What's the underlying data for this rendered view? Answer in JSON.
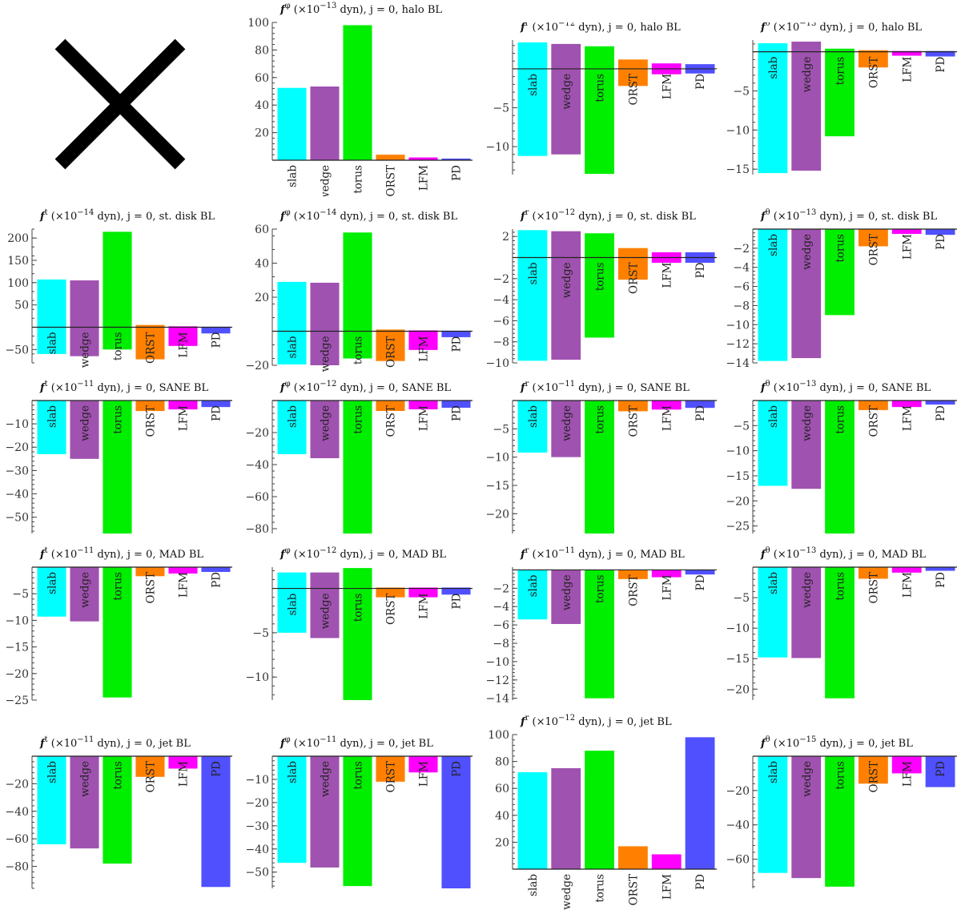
{
  "categories": [
    "slab",
    "wedge",
    "torus",
    "ORST",
    "LFM",
    "PD"
  ],
  "colors": [
    "#00ffff",
    "#a052b0",
    "#00ee00",
    "#ff8000",
    "#ff00ff",
    "#5050ff"
  ],
  "placeholder_icon": "cross-mark-icon",
  "chart_data": [
    {
      "id": "c1",
      "type": "bar",
      "title": "f^φ (×10^−13 dyn), j = 0, halo BL",
      "categories": [
        "slab",
        "wedge",
        "torus",
        "ORST",
        "LFM",
        "PD"
      ],
      "values": [
        52.5,
        53.5,
        98,
        4,
        2,
        1.2
      ],
      "ylim": [
        0,
        100
      ],
      "yticks": [
        20,
        40,
        60,
        80,
        100
      ],
      "labels_inside": false
    },
    {
      "id": "c2",
      "type": "bar",
      "title": "f^r (×10^−12 dyn), j = 0, halo BL",
      "categories": [
        "slab",
        "wedge",
        "torus",
        "ORST",
        "LFM",
        "PD"
      ],
      "values": [
        -11.2,
        -11.0,
        -13.5,
        -2.2,
        -0.7,
        -0.6
      ],
      "values_pos": [
        3.4,
        3.2,
        2.9,
        1.2,
        0.7,
        0.6
      ],
      "ylim": [
        -13.6,
        3.7
      ],
      "yticks": [
        -10,
        -5
      ],
      "labels_inside": true
    },
    {
      "id": "c3",
      "type": "bar",
      "title": "f^θ (×10^−13 dyn), j = 0, halo BL",
      "categories": [
        "slab",
        "wedge",
        "torus",
        "ORST",
        "LFM",
        "PD"
      ],
      "values": [
        -15.5,
        -15.2,
        -10.8,
        -2.0,
        -0.5,
        -0.6
      ],
      "values_pos": [
        1.1,
        1.3,
        0.4,
        0.2,
        0.1,
        0.1
      ],
      "ylim": [
        -15.7,
        1.5
      ],
      "yticks": [
        -15,
        -10,
        -5
      ],
      "labels_inside": true
    },
    {
      "id": "c4",
      "type": "bar",
      "title": "f^t (×10^−14 dyn), j = 0, st. disk BL",
      "categories": [
        "slab",
        "wedge",
        "torus",
        "ORST",
        "LFM",
        "PD"
      ],
      "values": [
        -60,
        -65,
        -50,
        -72,
        -42,
        -14
      ],
      "values_pos": [
        107,
        105,
        214,
        5,
        2,
        1
      ],
      "ylim": [
        -80,
        220
      ],
      "yticks": [
        -50,
        50,
        100,
        150,
        200
      ],
      "labels_inside": true
    },
    {
      "id": "c5",
      "type": "bar",
      "title": "f^φ (×10^−14 dyn), j = 0, st. disk BL",
      "categories": [
        "slab",
        "wedge",
        "torus",
        "ORST",
        "LFM",
        "PD"
      ],
      "values": [
        -19.5,
        -20,
        -16,
        -17.5,
        -11,
        -3.5
      ],
      "values_pos": [
        29,
        28.5,
        58,
        1,
        0.5,
        0.3
      ],
      "ylim": [
        -20,
        60
      ],
      "yticks": [
        -20,
        20,
        40,
        60
      ],
      "labels_inside": true
    },
    {
      "id": "c6",
      "type": "bar",
      "title": "f^r (×10^−12 dyn), j = 0, st. disk BL",
      "categories": [
        "slab",
        "wedge",
        "torus",
        "ORST",
        "LFM",
        "PD"
      ],
      "values": [
        -9.8,
        -9.7,
        -7.6,
        -2.1,
        -0.5,
        -0.5
      ],
      "values_pos": [
        2.6,
        2.5,
        2.3,
        0.9,
        0.5,
        0.5
      ],
      "ylim": [
        -10,
        2.7
      ],
      "yticks": [
        -10,
        -8,
        -6,
        -4,
        -2,
        2
      ],
      "labels_inside": true
    },
    {
      "id": "c7",
      "type": "bar",
      "title": "f^θ (×10^−13 dyn), j = 0, st. disk BL",
      "categories": [
        "slab",
        "wedge",
        "torus",
        "ORST",
        "LFM",
        "PD"
      ],
      "values": [
        -13.8,
        -13.5,
        -9.0,
        -1.8,
        -0.5,
        -0.6
      ],
      "ylim": [
        -14,
        0
      ],
      "yticks": [
        -14,
        -12,
        -10,
        -8,
        -6,
        -4,
        -2
      ],
      "labels_inside": true
    },
    {
      "id": "c8",
      "type": "bar",
      "title": "f^t (×10^−11 dyn), j = 0, SANE BL",
      "categories": [
        "slab",
        "wedge",
        "torus",
        "ORST",
        "LFM",
        "PD"
      ],
      "values": [
        -23,
        -25,
        -57,
        -4.5,
        -3.8,
        -2.8
      ],
      "ylim": [
        -57,
        0
      ],
      "yticks": [
        -50,
        -40,
        -30,
        -20,
        -10
      ],
      "labels_inside": true
    },
    {
      "id": "c9",
      "type": "bar",
      "title": "f^φ (×10^−12 dyn), j = 0, SANE BL",
      "categories": [
        "slab",
        "wedge",
        "torus",
        "ORST",
        "LFM",
        "PD"
      ],
      "values": [
        -33.5,
        -36,
        -83,
        -6.5,
        -5.5,
        -4.5
      ],
      "ylim": [
        -83,
        0
      ],
      "yticks": [
        -80,
        -60,
        -40,
        -20
      ],
      "labels_inside": true
    },
    {
      "id": "c10",
      "type": "bar",
      "title": "f^r (×10^−11 dyn), j = 0, SANE BL",
      "categories": [
        "slab",
        "wedge",
        "torus",
        "ORST",
        "LFM",
        "PD"
      ],
      "values": [
        -9.2,
        -10.0,
        -23.5,
        -1.9,
        -1.6,
        -1.3
      ],
      "ylim": [
        -23.5,
        0
      ],
      "yticks": [
        -20,
        -15,
        -10,
        -5
      ],
      "labels_inside": true
    },
    {
      "id": "c11",
      "type": "bar",
      "title": "f^θ (×10^−13 dyn), j = 0, SANE BL",
      "categories": [
        "slab",
        "wedge",
        "torus",
        "ORST",
        "LFM",
        "PD"
      ],
      "values": [
        -17,
        -17.6,
        -26.5,
        -1.9,
        -1.3,
        -0.8
      ],
      "ylim": [
        -26.5,
        0
      ],
      "yticks": [
        -25,
        -20,
        -15,
        -10,
        -5
      ],
      "labels_inside": true
    },
    {
      "id": "c12",
      "type": "bar",
      "title": "f^t (×10^−11 dyn), j = 0, MAD BL",
      "categories": [
        "slab",
        "wedge",
        "torus",
        "ORST",
        "LFM",
        "PD"
      ],
      "values": [
        -9.3,
        -10.2,
        -24.5,
        -1.7,
        -1.2,
        -0.9
      ],
      "ylim": [
        -25,
        0
      ],
      "yticks": [
        -25,
        -20,
        -15,
        -10,
        -5
      ],
      "labels_inside": true
    },
    {
      "id": "c13",
      "type": "bar",
      "title": "f^φ (×10^−12 dyn), j = 0, MAD BL",
      "categories": [
        "slab",
        "wedge",
        "torus",
        "ORST",
        "LFM",
        "PD"
      ],
      "values": [
        -5.0,
        -5.6,
        -12.6,
        -1.0,
        -1.0,
        -0.7
      ],
      "values_pos": [
        1.8,
        1.8,
        2.3,
        0.1,
        0.1,
        0.1
      ],
      "ylim": [
        -12.6,
        2.4
      ],
      "yticks": [
        -10,
        -5
      ],
      "labels_inside": true
    },
    {
      "id": "c14",
      "type": "bar",
      "title": "f^r (×10^−11 dyn), j = 0, MAD BL",
      "categories": [
        "slab",
        "wedge",
        "torus",
        "ORST",
        "LFM",
        "PD"
      ],
      "values": [
        -5.4,
        -5.9,
        -14.0,
        -1.0,
        -0.8,
        -0.5
      ],
      "ylim": [
        -14.2,
        0.3
      ],
      "yticks": [
        -14,
        -12,
        -10,
        -8,
        -6,
        -4,
        -2
      ],
      "labels_inside": true
    },
    {
      "id": "c15",
      "type": "bar",
      "title": "f^θ (×10^−13 dyn), j = 0, MAD BL",
      "categories": [
        "slab",
        "wedge",
        "torus",
        "ORST",
        "LFM",
        "PD"
      ],
      "values": [
        -14.8,
        -14.9,
        -21.5,
        -1.9,
        -0.9,
        -0.6
      ],
      "ylim": [
        -21.8,
        0
      ],
      "yticks": [
        -20,
        -15,
        -10,
        -5
      ],
      "labels_inside": true
    },
    {
      "id": "c16",
      "type": "bar",
      "title": "f^t (×10^−11 dyn), j = 0, jet BL",
      "categories": [
        "slab",
        "wedge",
        "torus",
        "ORST",
        "LFM",
        "PD"
      ],
      "values": [
        -64,
        -67,
        -78,
        -15,
        -9,
        -95
      ],
      "ylim": [
        -96,
        0
      ],
      "yticks": [
        -80,
        -60,
        -40,
        -20
      ],
      "labels_inside": true
    },
    {
      "id": "c17",
      "type": "bar",
      "title": "f^φ (×10^−11 dyn), j = 0, jet BL",
      "categories": [
        "slab",
        "wedge",
        "torus",
        "ORST",
        "LFM",
        "PD"
      ],
      "values": [
        -46,
        -48,
        -56,
        -11,
        -7,
        -57
      ],
      "ylim": [
        -57,
        0
      ],
      "yticks": [
        -50,
        -40,
        -30,
        -20,
        -10
      ],
      "labels_inside": true
    },
    {
      "id": "c18",
      "type": "bar",
      "title": "f^r (×10^−12 dyn), j = 0, jet BL",
      "categories": [
        "slab",
        "wedge",
        "torus",
        "ORST",
        "LFM",
        "PD"
      ],
      "values": [
        72,
        75,
        88,
        17,
        11,
        98
      ],
      "ylim": [
        0,
        100
      ],
      "yticks": [
        20,
        40,
        60,
        80,
        100
      ],
      "labels_inside": false
    },
    {
      "id": "c19",
      "type": "bar",
      "title": "f^θ (×10^−15 dyn), j = 0, jet BL",
      "categories": [
        "slab",
        "wedge",
        "torus",
        "ORST",
        "LFM",
        "PD"
      ],
      "values": [
        -68,
        -71,
        -76,
        -16,
        -10,
        -18
      ],
      "ylim": [
        -77,
        0
      ],
      "yticks": [
        -60,
        -40,
        -20
      ],
      "labels_inside": true
    }
  ]
}
